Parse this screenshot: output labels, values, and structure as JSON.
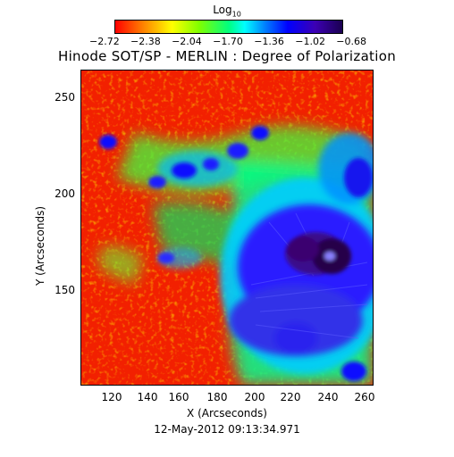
{
  "colorbar": {
    "title": "Log",
    "title_sub": "10",
    "ticks": [
      "−2.72",
      "−2.38",
      "−2.04",
      "−1.70",
      "−1.36",
      "−1.02",
      "−0.68"
    ]
  },
  "title": "Hinode SOT/SP - MERLIN : Degree of Polarization",
  "axes": {
    "xlabel": "X (Arcseconds)",
    "ylabel": "Y (Arcseconds)",
    "xticks": [
      "120",
      "140",
      "160",
      "180",
      "200",
      "220",
      "240",
      "260"
    ],
    "yticks": [
      "150",
      "200",
      "250"
    ],
    "xrange": [
      110,
      262
    ],
    "yrange": [
      100,
      266
    ]
  },
  "timestamp": "12-May-2012 09:13:34.971"
}
